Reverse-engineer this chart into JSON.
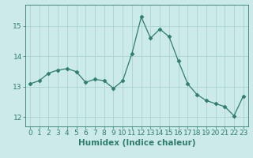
{
  "x": [
    0,
    1,
    2,
    3,
    4,
    5,
    6,
    7,
    8,
    9,
    10,
    11,
    12,
    13,
    14,
    15,
    16,
    17,
    18,
    19,
    20,
    21,
    22,
    23
  ],
  "y": [
    13.1,
    13.2,
    13.45,
    13.55,
    13.6,
    13.5,
    13.15,
    13.25,
    13.2,
    12.95,
    13.2,
    14.1,
    15.3,
    14.6,
    14.9,
    14.65,
    13.85,
    13.1,
    12.75,
    12.55,
    12.45,
    12.35,
    12.05,
    12.7
  ],
  "line_color": "#2e7d6e",
  "marker": "D",
  "marker_size": 2.5,
  "bg_color": "#cceae7",
  "grid_color": "#aad4d0",
  "xlabel": "Humidex (Indice chaleur)",
  "xlim": [
    -0.5,
    23.5
  ],
  "ylim": [
    11.7,
    15.7
  ],
  "yticks": [
    12,
    13,
    14,
    15
  ],
  "xticks": [
    0,
    1,
    2,
    3,
    4,
    5,
    6,
    7,
    8,
    9,
    10,
    11,
    12,
    13,
    14,
    15,
    16,
    17,
    18,
    19,
    20,
    21,
    22,
    23
  ],
  "tick_color": "#2e7d6e",
  "label_color": "#2e7d6e",
  "xlabel_fontsize": 7.5,
  "tick_fontsize": 6.5
}
